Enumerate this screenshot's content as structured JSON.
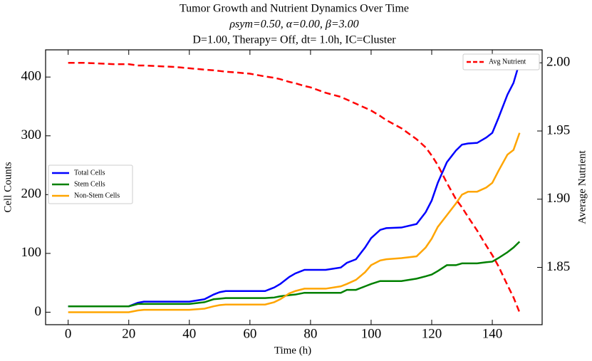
{
  "chart_data": {
    "type": "line",
    "title": "Tumor Growth and Nutrient Dynamics Over Time",
    "subtitle": [
      "ρsym=0.50, α=0.00, β=3.00",
      "D=1.00, Therapy= Off, dt= 1.0h, IC=Cluster"
    ],
    "xlabel": "Time (h)",
    "ylabel": "Cell Counts",
    "y2label": "Average Nutrient",
    "x": [
      0,
      5,
      10,
      15,
      20,
      23,
      25,
      30,
      35,
      40,
      45,
      48,
      50,
      52,
      55,
      60,
      65,
      68,
      70,
      73,
      75,
      78,
      80,
      85,
      90,
      92,
      95,
      98,
      100,
      103,
      105,
      110,
      115,
      118,
      120,
      122,
      125,
      128,
      130,
      132,
      135,
      138,
      140,
      142,
      145,
      147,
      149
    ],
    "series": [
      {
        "name": "Total Cells",
        "color": "#0000ff",
        "linestyle": "solid",
        "values": [
          10,
          10,
          10,
          10,
          10,
          16,
          18,
          18,
          18,
          18,
          22,
          30,
          34,
          36,
          36,
          36,
          36,
          42,
          48,
          60,
          66,
          72,
          72,
          72,
          76,
          84,
          90,
          110,
          126,
          140,
          143,
          144,
          150,
          170,
          190,
          220,
          255,
          275,
          285,
          287,
          288,
          297,
          305,
          330,
          370,
          390,
          425
        ]
      },
      {
        "name": "Stem Cells",
        "color": "#008000",
        "linestyle": "solid",
        "values": [
          10,
          10,
          10,
          10,
          10,
          14,
          14,
          14,
          14,
          14,
          17,
          22,
          23,
          24,
          24,
          24,
          24,
          25,
          27,
          29,
          30,
          33,
          33,
          33,
          33,
          38,
          38,
          44,
          48,
          53,
          53,
          53,
          57,
          61,
          64,
          70,
          80,
          80,
          83,
          83,
          83,
          85,
          86,
          92,
          102,
          110,
          120
        ]
      },
      {
        "name": "Non-Stem Cells",
        "color": "#ffa500",
        "linestyle": "solid",
        "values": [
          0,
          0,
          0,
          0,
          0,
          3,
          4,
          4,
          4,
          4,
          6,
          10,
          12,
          13,
          13,
          13,
          13,
          17,
          22,
          32,
          36,
          40,
          40,
          40,
          44,
          48,
          55,
          68,
          80,
          88,
          90,
          92,
          95,
          110,
          125,
          145,
          165,
          185,
          200,
          205,
          205,
          212,
          220,
          240,
          268,
          276,
          305
        ]
      },
      {
        "name": "Avg Nutrient",
        "color": "#ff0000",
        "linestyle": "dashed",
        "axis": "y2",
        "values": [
          2.0,
          2.0,
          1.9995,
          1.999,
          1.999,
          1.998,
          1.998,
          1.9975,
          1.997,
          1.996,
          1.995,
          1.9945,
          1.994,
          1.9935,
          1.993,
          1.992,
          1.99,
          1.989,
          1.988,
          1.986,
          1.985,
          1.983,
          1.982,
          1.978,
          1.975,
          1.973,
          1.97,
          1.967,
          1.965,
          1.961,
          1.958,
          1.952,
          1.944,
          1.938,
          1.932,
          1.925,
          1.912,
          1.9,
          1.894,
          1.887,
          1.877,
          1.866,
          1.859,
          1.851,
          1.837,
          1.828,
          1.817
        ]
      }
    ],
    "xlim": [
      -7.45,
      156.45
    ],
    "xticks": [
      0,
      20,
      40,
      60,
      80,
      100,
      120,
      140
    ],
    "ylim": [
      -21.25,
      446.25
    ],
    "yticks": [
      0,
      100,
      200,
      300,
      400
    ],
    "y2lim": [
      1.808,
      2.0095
    ],
    "y2ticks": [
      1.85,
      {
        "value": 1.9,
        "label": "1.90"
      },
      1.95,
      {
        "value": 2.0,
        "label": "2.00"
      }
    ],
    "legend_loc": "center left",
    "legend2_loc": "upper right"
  }
}
